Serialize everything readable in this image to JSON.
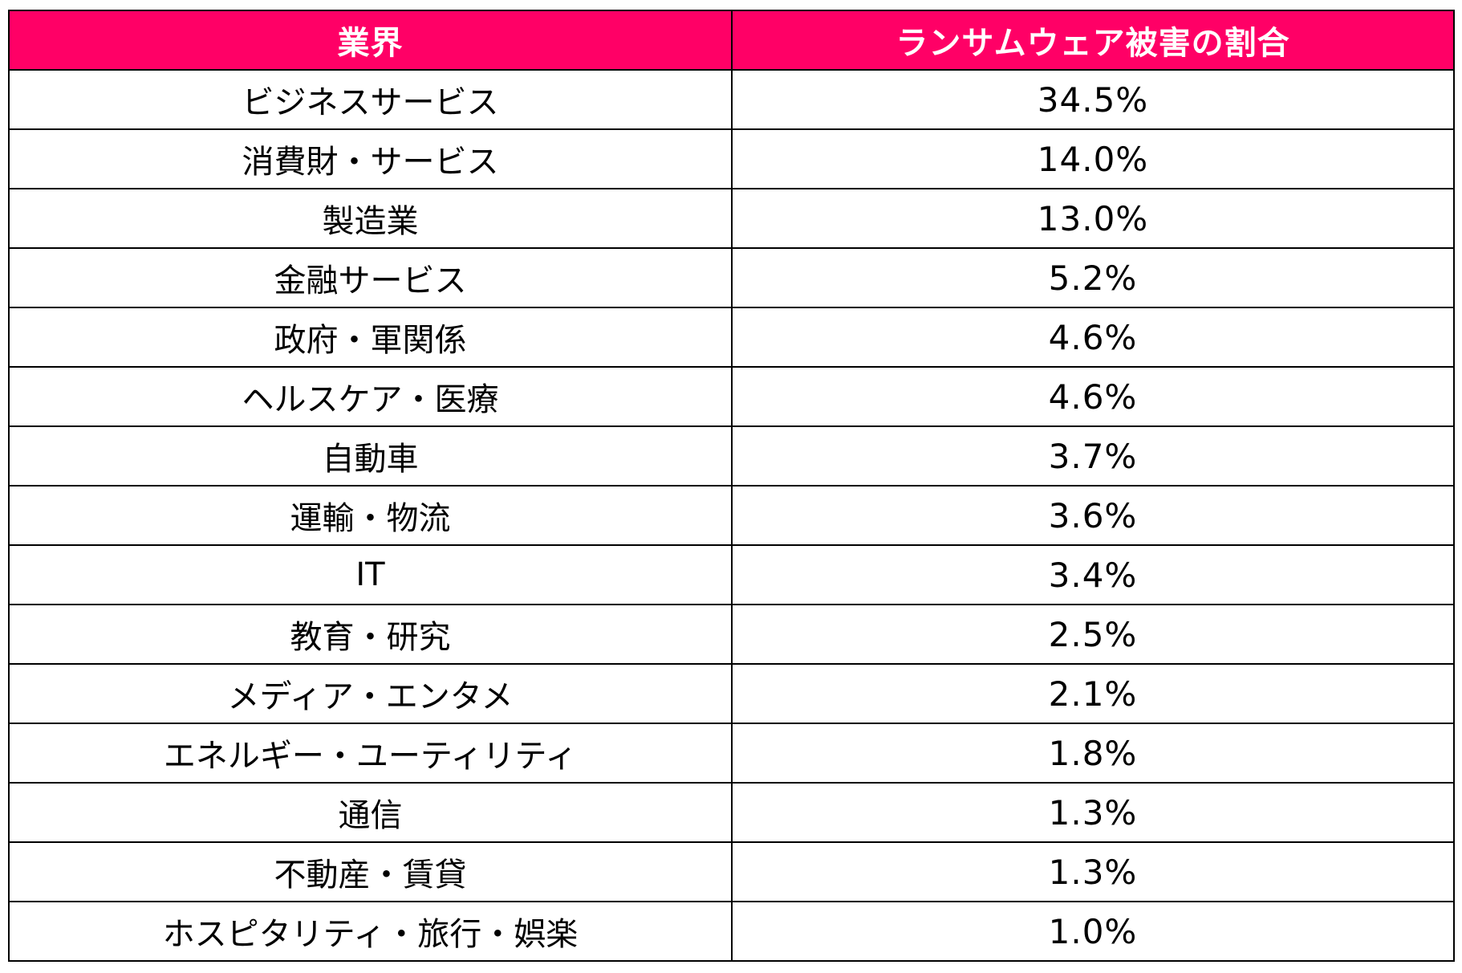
{
  "table": {
    "header_color": "#ff0066",
    "headers": [
      "業界",
      "ランサムウェア被害の割合"
    ],
    "rows": [
      {
        "industry": "ビジネスサービス",
        "share": "34.5%"
      },
      {
        "industry": "消費財・サービス",
        "share": "14.0%"
      },
      {
        "industry": "製造業",
        "share": "13.0%"
      },
      {
        "industry": "金融サービス",
        "share": "5.2%"
      },
      {
        "industry": "政府・軍関係",
        "share": "4.6%"
      },
      {
        "industry": "ヘルスケア・医療",
        "share": "4.6%"
      },
      {
        "industry": "自動車",
        "share": "3.7%"
      },
      {
        "industry": "運輸・物流",
        "share": "3.6%"
      },
      {
        "industry": "IT",
        "share": "3.4%"
      },
      {
        "industry": "教育・研究",
        "share": "2.5%"
      },
      {
        "industry": "メディア・エンタメ",
        "share": "2.1%"
      },
      {
        "industry": "エネルギー・ユーティリティ",
        "share": "1.8%"
      },
      {
        "industry": "通信",
        "share": "1.3%"
      },
      {
        "industry": "不動産・賃貸",
        "share": "1.3%"
      },
      {
        "industry": "ホスピタリティ・旅行・娯楽",
        "share": "1.0%"
      }
    ]
  }
}
